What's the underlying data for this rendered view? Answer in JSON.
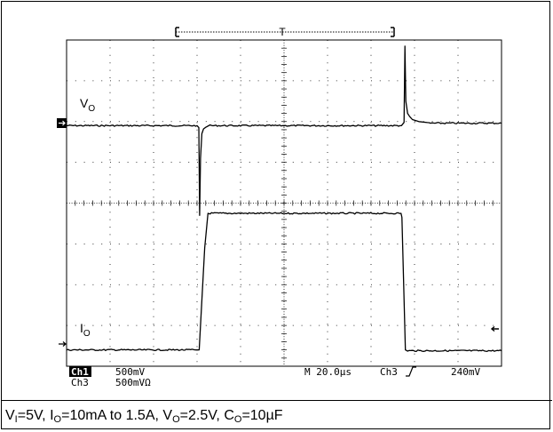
{
  "chart_data": {
    "type": "line",
    "title": "",
    "grid": true,
    "time_unit": "µs",
    "x_range_us": [
      -66,
      134
    ],
    "trigger_marker": "T",
    "series": [
      {
        "name": "VO",
        "channel": "Ch1",
        "trace_color": "#000000",
        "x_us": [
          -66,
          -6,
          -5.2,
          -4.8,
          -4.4,
          -3.8,
          -3,
          -2,
          0,
          88,
          89.2,
          89.6,
          90,
          90.8,
          91.8,
          93,
          96,
          100,
          134
        ],
        "y_div": [
          1.9,
          1.9,
          1.85,
          -0.3,
          1.1,
          1.7,
          1.82,
          1.86,
          1.9,
          1.9,
          1.98,
          3.85,
          2.5,
          2.2,
          2.12,
          2.05,
          2.0,
          1.96,
          1.96
        ]
      },
      {
        "name": "IO",
        "channel": "Ch3",
        "trace_color": "#000000",
        "x_us": [
          -66,
          -5,
          -2.5,
          -1,
          0,
          87.8,
          88.2,
          89.8,
          90.2,
          134
        ],
        "y_div": [
          -3.6,
          -3.6,
          -1.1,
          -0.25,
          -0.25,
          -0.25,
          -0.35,
          -3.6,
          -3.62,
          -3.62
        ]
      }
    ],
    "readout": {
      "ch1_label": "Ch1",
      "ch1_scale": "500mV",
      "ch3_label": "Ch3",
      "ch3_scale": "500mVΩ",
      "timebase": "M 20.0µs",
      "trigger_source": "Ch3",
      "trigger_slope_icon": "rising-edge-icon",
      "trigger_level": "240mV"
    }
  },
  "labels": {
    "vo_main": "V",
    "vo_sub": "O",
    "io_main": "I",
    "io_sub": "O"
  },
  "caption": {
    "vi_main": "V",
    "vi_sub": "I",
    "vi_rest": "=5V, ",
    "io_main": "I",
    "io_sub": "O",
    "io_rest": "=10mA to 1.5A, ",
    "vo_main": "V",
    "vo_sub": "O",
    "vo_rest": "=2.5V, ",
    "co_main": "C",
    "co_sub": "O",
    "co_rest": "=10µF"
  }
}
